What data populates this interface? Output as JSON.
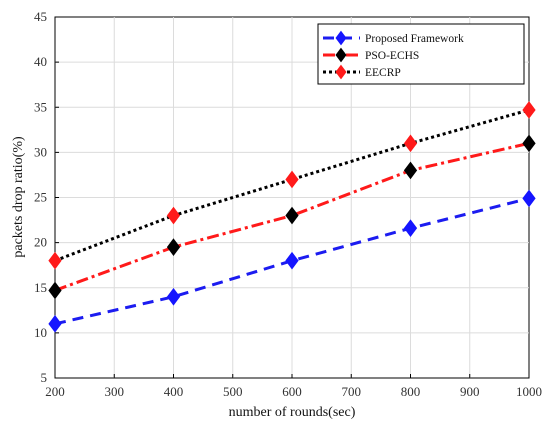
{
  "chart_data": {
    "type": "line",
    "title": "",
    "xlabel": "number of rounds(sec)",
    "ylabel": "packets drop ratio(%)",
    "xlim": [
      200,
      1000
    ],
    "ylim": [
      5,
      45
    ],
    "xticks": [
      200,
      300,
      400,
      500,
      600,
      700,
      800,
      900,
      1000
    ],
    "yticks": [
      5,
      10,
      15,
      20,
      25,
      30,
      35,
      40,
      45
    ],
    "grid": true,
    "legend_position": "top-right",
    "x": [
      200,
      400,
      600,
      800,
      1000
    ],
    "series": [
      {
        "name": "Proposed Framework",
        "values": [
          11,
          14,
          18,
          21.6,
          24.9
        ],
        "line_color": "#1c1cf0",
        "marker_color": "#1515ff",
        "line_style": "dashed",
        "marker": "diamond"
      },
      {
        "name": "PSO-ECHS",
        "values": [
          14.7,
          19.5,
          23,
          28,
          31
        ],
        "line_color": "#ff1a1a",
        "marker_color": "#000000",
        "line_style": "dash-dot",
        "marker": "diamond"
      },
      {
        "name": "EECRP",
        "values": [
          18,
          23,
          27,
          31,
          34.7
        ],
        "line_color": "#000000",
        "marker_color": "#ff1a1a",
        "line_style": "dotted",
        "marker": "diamond"
      }
    ]
  }
}
